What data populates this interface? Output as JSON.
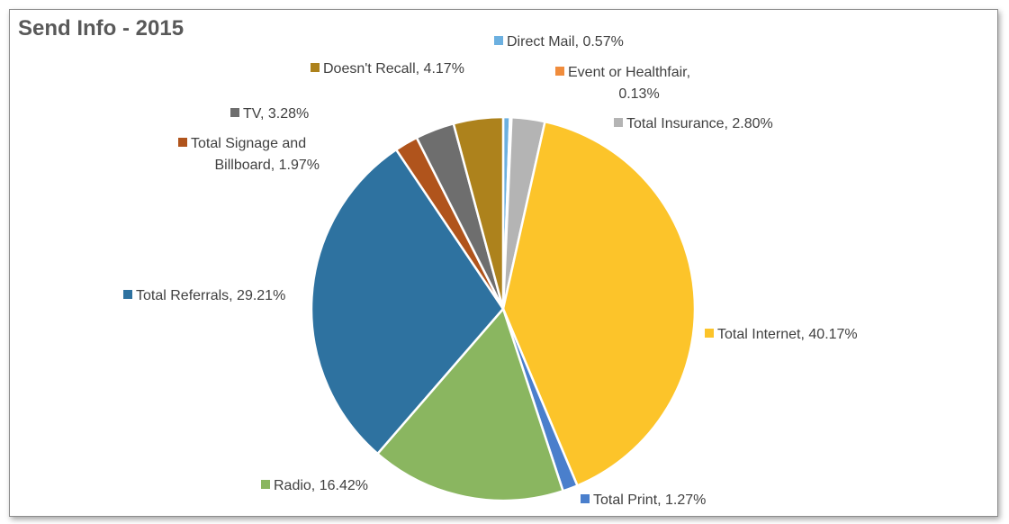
{
  "chart_data": {
    "type": "pie",
    "title": "Send Info - 2015",
    "slices": [
      {
        "label": [
          "Direct Mail, 0.57%"
        ],
        "value": 0.57,
        "color": "#6cb0e0"
      },
      {
        "label": [
          "Event or Healthfair,",
          "0.13%"
        ],
        "value": 0.13,
        "color": "#f08c3c"
      },
      {
        "label": [
          "Total Insurance, 2.80%"
        ],
        "value": 2.8,
        "color": "#b4b4b4"
      },
      {
        "label": [
          "Total Internet, 40.17%"
        ],
        "value": 40.17,
        "color": "#fcc42a"
      },
      {
        "label": [
          "Total Print, 1.27%"
        ],
        "value": 1.27,
        "color": "#4a7fcc"
      },
      {
        "label": [
          "Radio, 16.42%"
        ],
        "value": 16.42,
        "color": "#8ab660"
      },
      {
        "label": [
          "Total Referrals, 29.21%"
        ],
        "value": 29.21,
        "color": "#2e72a0"
      },
      {
        "label": [
          "Total Signage and",
          "Billboard, 1.97%"
        ],
        "value": 1.97,
        "color": "#b0541c"
      },
      {
        "label": [
          "TV, 3.28%"
        ],
        "value": 3.28,
        "color": "#6e6e6e"
      },
      {
        "label": [
          "Doesn't Recall, 4.17%"
        ],
        "value": 4.17,
        "color": "#ad821c"
      }
    ]
  }
}
